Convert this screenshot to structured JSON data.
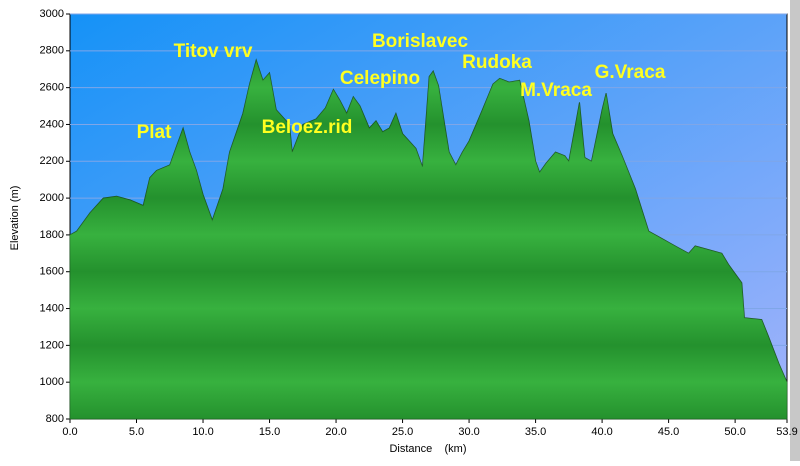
{
  "chart_data": {
    "type": "area",
    "x_label": "Distance    (km)",
    "y_label": "Elevation (m)",
    "color": "#2c9c34",
    "background": "#3a8ef2",
    "grid": true,
    "x": [
      0,
      0.5,
      1.5,
      2.5,
      3.5,
      4.5,
      5.5,
      6,
      6.5,
      7.5,
      8,
      8.5,
      9,
      9.5,
      10,
      10.7,
      11.5,
      12,
      13,
      13.5,
      14,
      14.5,
      15,
      15.5,
      16.5,
      16.7,
      17.5,
      18.5,
      19.2,
      19.8,
      20.3,
      20.8,
      21.3,
      21.8,
      22.5,
      23,
      23.5,
      24,
      24.5,
      25,
      26,
      26.5,
      27,
      27.3,
      27.7,
      28.5,
      29,
      29.5,
      30,
      31,
      31.8,
      32.3,
      33,
      33.8,
      34.5,
      35,
      35.3,
      35.8,
      36.5,
      37.2,
      37.5,
      38.3,
      38.7,
      39.2,
      40,
      40.3,
      40.8,
      41.5,
      42.5,
      43.5,
      44.5,
      45.5,
      46.5,
      47,
      48,
      49,
      49.5,
      50.5,
      50.7,
      52,
      52.5,
      53.3,
      53.9
    ],
    "values": [
      1800,
      1820,
      1920,
      2000,
      2010,
      1990,
      1960,
      2110,
      2150,
      2180,
      2280,
      2380,
      2250,
      2150,
      2020,
      1880,
      2050,
      2250,
      2460,
      2620,
      2750,
      2640,
      2680,
      2480,
      2400,
      2250,
      2400,
      2430,
      2490,
      2590,
      2530,
      2460,
      2550,
      2500,
      2380,
      2420,
      2360,
      2380,
      2460,
      2350,
      2270,
      2170,
      2660,
      2690,
      2610,
      2250,
      2180,
      2250,
      2310,
      2480,
      2620,
      2650,
      2630,
      2640,
      2420,
      2200,
      2140,
      2190,
      2250,
      2230,
      2200,
      2520,
      2220,
      2200,
      2480,
      2570,
      2350,
      2230,
      2050,
      1820,
      1780,
      1740,
      1700,
      1740,
      1720,
      1700,
      1640,
      1540,
      1350,
      1340,
      1250,
      1100,
      1000
    ],
    "xlim": [
      0,
      53.9
    ],
    "ylim": [
      800,
      3000
    ],
    "xticks": [
      {
        "value": 0,
        "label": "0.0"
      },
      {
        "value": 5,
        "label": "5.0"
      },
      {
        "value": 10,
        "label": "10.0"
      },
      {
        "value": 15,
        "label": "15.0"
      },
      {
        "value": 20,
        "label": "20.0"
      },
      {
        "value": 25,
        "label": "25.0"
      },
      {
        "value": 30,
        "label": "30.0"
      },
      {
        "value": 35,
        "label": "35.0"
      },
      {
        "value": 40,
        "label": "40.0"
      },
      {
        "value": 45,
        "label": "45.0"
      },
      {
        "value": 50,
        "label": "50.0"
      },
      53.9
    ],
    "yticks": [
      800,
      1000,
      1200,
      1400,
      1600,
      1800,
      2000,
      2200,
      2400,
      2600,
      2800,
      3000
    ],
    "annotations": [
      "Titov vrv",
      "Plat",
      "Beloez.rid",
      "Borislavec",
      "Celepino",
      "Rudoka",
      "M.Vraca",
      "G.Vraca"
    ]
  }
}
